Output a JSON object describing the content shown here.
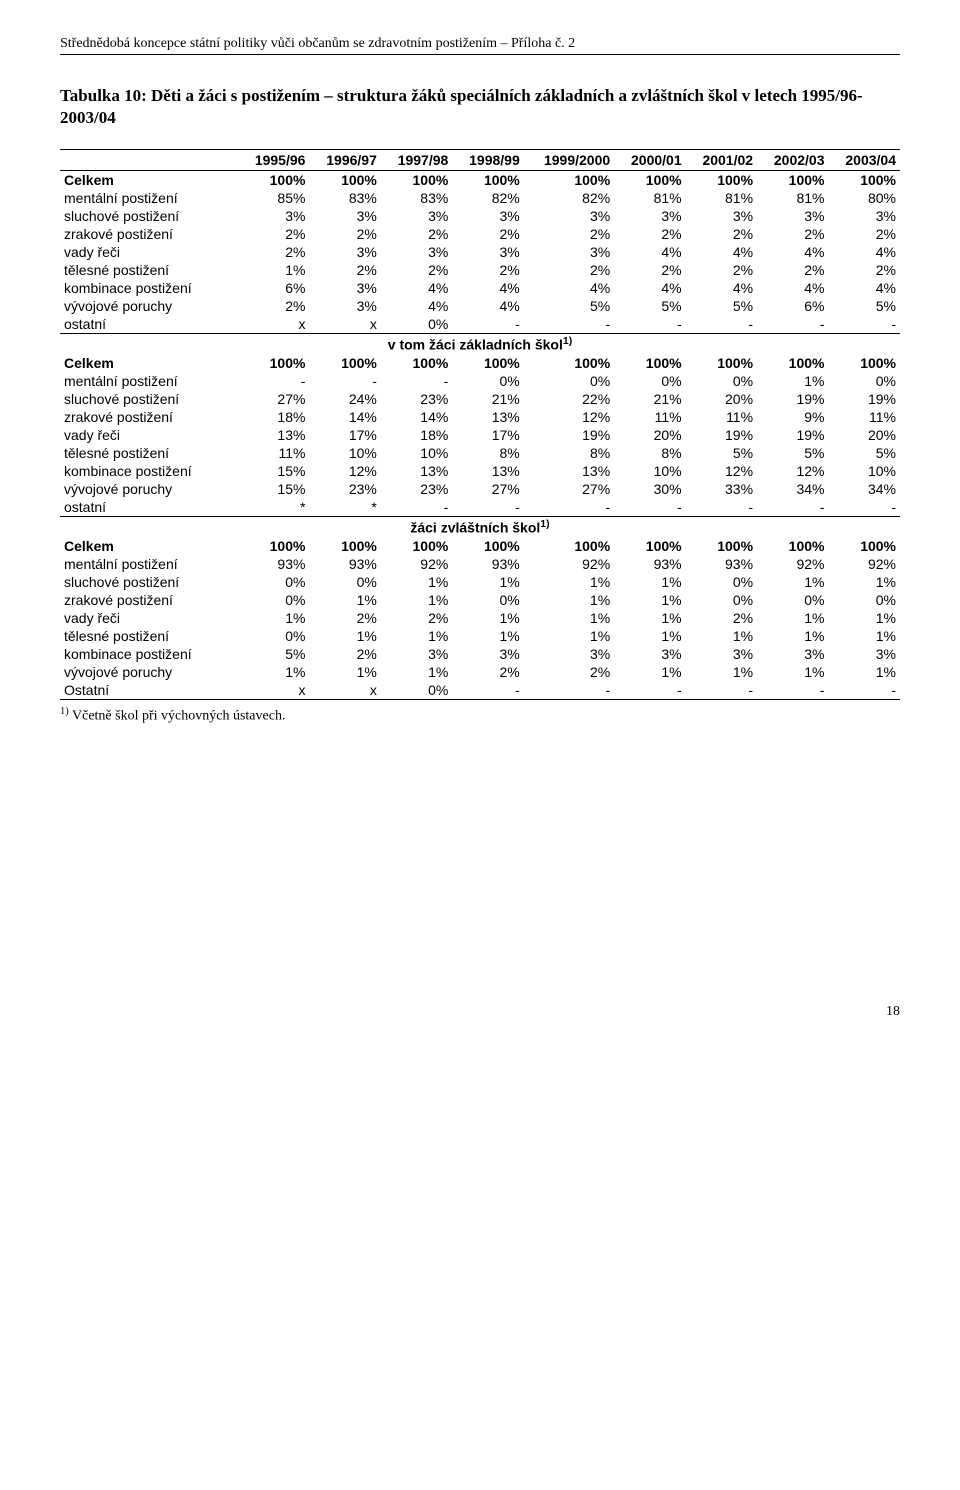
{
  "header": "Střednědobá koncepce státní politiky vůči občanům se zdravotním postižením – Příloha č. 2",
  "title": "Tabulka 10: Děti a žáci s postižením – struktura žáků speciálních základních a zvláštních škol v letech 1995/96-2003/04",
  "footnote": "1) Včetně škol při výchovných ústavech.",
  "page_number": "18",
  "table": {
    "columns": [
      "",
      "1995/96",
      "1996/97",
      "1997/98",
      "1998/99",
      "1999/2000",
      "2000/01",
      "2001/02",
      "2002/03",
      "2003/04"
    ],
    "sections": [
      {
        "header": null,
        "rows": [
          {
            "label": "Celkem",
            "bold": true,
            "cells": [
              "100%",
              "100%",
              "100%",
              "100%",
              "100%",
              "100%",
              "100%",
              "100%",
              "100%"
            ]
          },
          {
            "label": "mentální postižení",
            "cells": [
              "85%",
              "83%",
              "83%",
              "82%",
              "82%",
              "81%",
              "81%",
              "81%",
              "80%"
            ]
          },
          {
            "label": "sluchové postižení",
            "cells": [
              "3%",
              "3%",
              "3%",
              "3%",
              "3%",
              "3%",
              "3%",
              "3%",
              "3%"
            ]
          },
          {
            "label": "zrakové postižení",
            "cells": [
              "2%",
              "2%",
              "2%",
              "2%",
              "2%",
              "2%",
              "2%",
              "2%",
              "2%"
            ]
          },
          {
            "label": "vady řeči",
            "cells": [
              "2%",
              "3%",
              "3%",
              "3%",
              "3%",
              "4%",
              "4%",
              "4%",
              "4%"
            ]
          },
          {
            "label": "tělesné postižení",
            "cells": [
              "1%",
              "2%",
              "2%",
              "2%",
              "2%",
              "2%",
              "2%",
              "2%",
              "2%"
            ]
          },
          {
            "label": "kombinace postižení",
            "cells": [
              "6%",
              "3%",
              "4%",
              "4%",
              "4%",
              "4%",
              "4%",
              "4%",
              "4%"
            ]
          },
          {
            "label": "vývojové poruchy",
            "cells": [
              "2%",
              "3%",
              "4%",
              "4%",
              "5%",
              "5%",
              "5%",
              "6%",
              "5%"
            ]
          },
          {
            "label": "ostatní",
            "cells": [
              "x",
              "x",
              "0%",
              "-",
              "-",
              "-",
              "-",
              "-",
              "-"
            ]
          }
        ]
      },
      {
        "header": "v tom žáci základních škol",
        "header_sup": "1)",
        "rows": [
          {
            "label": "Celkem",
            "bold": true,
            "cells": [
              "100%",
              "100%",
              "100%",
              "100%",
              "100%",
              "100%",
              "100%",
              "100%",
              "100%"
            ]
          },
          {
            "label": "mentální postižení",
            "cells": [
              "-",
              "-",
              "-",
              "0%",
              "0%",
              "0%",
              "0%",
              "1%",
              "0%"
            ]
          },
          {
            "label": "sluchové postižení",
            "cells": [
              "27%",
              "24%",
              "23%",
              "21%",
              "22%",
              "21%",
              "20%",
              "19%",
              "19%"
            ]
          },
          {
            "label": "zrakové postižení",
            "cells": [
              "18%",
              "14%",
              "14%",
              "13%",
              "12%",
              "11%",
              "11%",
              "9%",
              "11%"
            ]
          },
          {
            "label": "vady řeči",
            "cells": [
              "13%",
              "17%",
              "18%",
              "17%",
              "19%",
              "20%",
              "19%",
              "19%",
              "20%"
            ]
          },
          {
            "label": "tělesné postižení",
            "cells": [
              "11%",
              "10%",
              "10%",
              "8%",
              "8%",
              "8%",
              "5%",
              "5%",
              "5%"
            ]
          },
          {
            "label": "kombinace postižení",
            "cells": [
              "15%",
              "12%",
              "13%",
              "13%",
              "13%",
              "10%",
              "12%",
              "12%",
              "10%"
            ]
          },
          {
            "label": "vývojové poruchy",
            "cells": [
              "15%",
              "23%",
              "23%",
              "27%",
              "27%",
              "30%",
              "33%",
              "34%",
              "34%"
            ]
          },
          {
            "label": "ostatní",
            "cells": [
              "*",
              "*",
              "-",
              "-",
              "-",
              "-",
              "-",
              "-",
              "-"
            ]
          }
        ]
      },
      {
        "header": "žáci zvláštních škol",
        "header_sup": "1)",
        "rows": [
          {
            "label": "Celkem",
            "bold": true,
            "cells": [
              "100%",
              "100%",
              "100%",
              "100%",
              "100%",
              "100%",
              "100%",
              "100%",
              "100%"
            ]
          },
          {
            "label": "mentální postižení",
            "cells": [
              "93%",
              "93%",
              "92%",
              "93%",
              "92%",
              "93%",
              "93%",
              "92%",
              "92%"
            ]
          },
          {
            "label": "sluchové postižení",
            "cells": [
              "0%",
              "0%",
              "1%",
              "1%",
              "1%",
              "1%",
              "0%",
              "1%",
              "1%"
            ]
          },
          {
            "label": "zrakové postižení",
            "cells": [
              "0%",
              "1%",
              "1%",
              "0%",
              "1%",
              "1%",
              "0%",
              "0%",
              "0%"
            ]
          },
          {
            "label": "vady řeči",
            "cells": [
              "1%",
              "2%",
              "2%",
              "1%",
              "1%",
              "1%",
              "2%",
              "1%",
              "1%"
            ]
          },
          {
            "label": "tělesné postižení",
            "cells": [
              "0%",
              "1%",
              "1%",
              "1%",
              "1%",
              "1%",
              "1%",
              "1%",
              "1%"
            ]
          },
          {
            "label": "kombinace postižení",
            "cells": [
              "5%",
              "2%",
              "3%",
              "3%",
              "3%",
              "3%",
              "3%",
              "3%",
              "3%"
            ]
          },
          {
            "label": "vývojové poruchy",
            "cells": [
              "1%",
              "1%",
              "1%",
              "2%",
              "2%",
              "1%",
              "1%",
              "1%",
              "1%"
            ]
          },
          {
            "label": "Ostatní",
            "cells": [
              "x",
              "x",
              "0%",
              "-",
              "-",
              "-",
              "-",
              "-",
              "-"
            ]
          }
        ]
      }
    ]
  }
}
